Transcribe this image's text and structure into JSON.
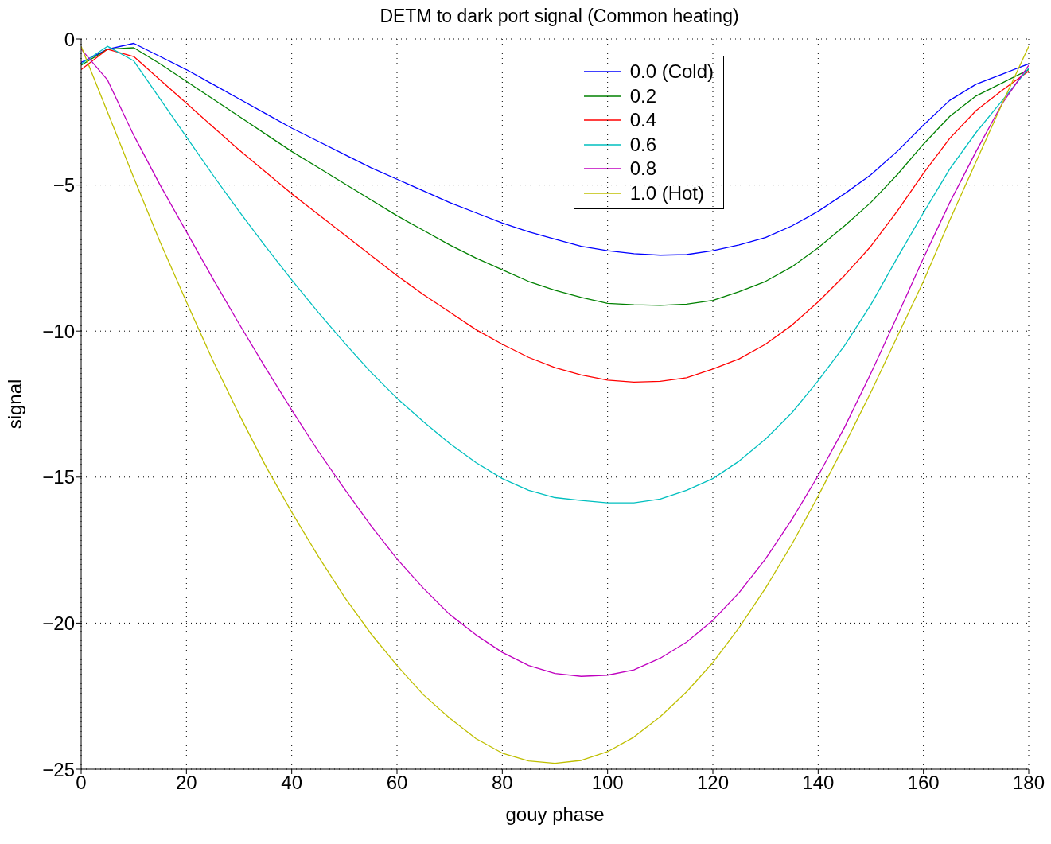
{
  "chart_data": {
    "type": "line",
    "title": "DETM to dark port signal (Common heating)",
    "xlabel": "gouy phase",
    "ylabel": "signal",
    "x": [
      0,
      5,
      10,
      15,
      20,
      25,
      30,
      35,
      40,
      45,
      50,
      55,
      60,
      65,
      70,
      75,
      80,
      85,
      90,
      95,
      100,
      105,
      110,
      115,
      120,
      125,
      130,
      135,
      140,
      145,
      150,
      155,
      160,
      165,
      170,
      175,
      180
    ],
    "series": [
      {
        "name": "0.0 (Cold)",
        "color": "#0000ff",
        "values": [
          -0.8,
          -0.35,
          -0.15,
          -0.6,
          -1.05,
          -1.55,
          -2.05,
          -2.55,
          -3.05,
          -3.5,
          -3.95,
          -4.4,
          -4.8,
          -5.2,
          -5.6,
          -5.95,
          -6.3,
          -6.6,
          -6.85,
          -7.1,
          -7.25,
          -7.35,
          -7.4,
          -7.38,
          -7.25,
          -7.05,
          -6.8,
          -6.4,
          -5.9,
          -5.3,
          -4.65,
          -3.85,
          -2.95,
          -2.1,
          -1.55,
          -1.2,
          -0.85
        ]
      },
      {
        "name": "0.2",
        "color": "#008000",
        "values": [
          -0.9,
          -0.35,
          -0.3,
          -0.85,
          -1.45,
          -2.05,
          -2.65,
          -3.25,
          -3.85,
          -4.4,
          -4.95,
          -5.5,
          -6.05,
          -6.55,
          -7.05,
          -7.5,
          -7.9,
          -8.3,
          -8.6,
          -8.85,
          -9.05,
          -9.1,
          -9.12,
          -9.08,
          -8.95,
          -8.65,
          -8.3,
          -7.8,
          -7.15,
          -6.4,
          -5.6,
          -4.65,
          -3.6,
          -2.65,
          -1.95,
          -1.5,
          -1.05
        ]
      },
      {
        "name": "0.4",
        "color": "#ff0000",
        "values": [
          -1.05,
          -0.35,
          -0.6,
          -1.4,
          -2.2,
          -3.0,
          -3.8,
          -4.55,
          -5.3,
          -6.0,
          -6.7,
          -7.4,
          -8.1,
          -8.75,
          -9.35,
          -9.95,
          -10.45,
          -10.9,
          -11.25,
          -11.5,
          -11.68,
          -11.75,
          -11.72,
          -11.6,
          -11.3,
          -10.95,
          -10.45,
          -9.8,
          -9.0,
          -8.1,
          -7.1,
          -5.9,
          -4.6,
          -3.4,
          -2.45,
          -1.75,
          -1.1
        ]
      },
      {
        "name": "0.6",
        "color": "#00bfbf",
        "values": [
          -0.85,
          -0.25,
          -0.75,
          -2.05,
          -3.35,
          -4.65,
          -5.9,
          -7.1,
          -8.25,
          -9.35,
          -10.4,
          -11.4,
          -12.3,
          -13.1,
          -13.85,
          -14.5,
          -15.05,
          -15.45,
          -15.7,
          -15.8,
          -15.88,
          -15.88,
          -15.75,
          -15.45,
          -15.05,
          -14.45,
          -13.7,
          -12.8,
          -11.7,
          -10.5,
          -9.1,
          -7.5,
          -5.95,
          -4.45,
          -3.2,
          -2.1,
          -1.0
        ]
      },
      {
        "name": "0.8",
        "color": "#bf00bf",
        "values": [
          -0.35,
          -1.4,
          -3.3,
          -5.0,
          -6.6,
          -8.2,
          -9.75,
          -11.25,
          -12.7,
          -14.1,
          -15.4,
          -16.65,
          -17.8,
          -18.8,
          -19.7,
          -20.4,
          -21.0,
          -21.45,
          -21.72,
          -21.82,
          -21.78,
          -21.6,
          -21.2,
          -20.65,
          -19.9,
          -18.95,
          -17.8,
          -16.45,
          -14.95,
          -13.3,
          -11.45,
          -9.5,
          -7.5,
          -5.6,
          -3.85,
          -2.2,
          -0.9
        ]
      },
      {
        "name": "1.0 (Hot)",
        "color": "#bfbf00",
        "values": [
          -0.25,
          -2.5,
          -4.75,
          -6.95,
          -9.0,
          -11.0,
          -12.85,
          -14.6,
          -16.2,
          -17.7,
          -19.1,
          -20.35,
          -21.45,
          -22.45,
          -23.25,
          -23.95,
          -24.45,
          -24.72,
          -24.8,
          -24.7,
          -24.4,
          -23.9,
          -23.2,
          -22.35,
          -21.35,
          -20.15,
          -18.8,
          -17.3,
          -15.65,
          -13.9,
          -12.1,
          -10.2,
          -8.3,
          -6.2,
          -4.2,
          -2.2,
          -0.25
        ]
      }
    ],
    "xlim": [
      0,
      180
    ],
    "xticks": [
      0,
      20,
      40,
      60,
      80,
      100,
      120,
      140,
      160,
      180
    ],
    "ylim": [
      -25,
      0
    ],
    "yticks": [
      -25,
      -20,
      -15,
      -10,
      -5,
      0
    ],
    "grid": true,
    "legend": "top right",
    "marker": "none",
    "line_style": "solid"
  }
}
